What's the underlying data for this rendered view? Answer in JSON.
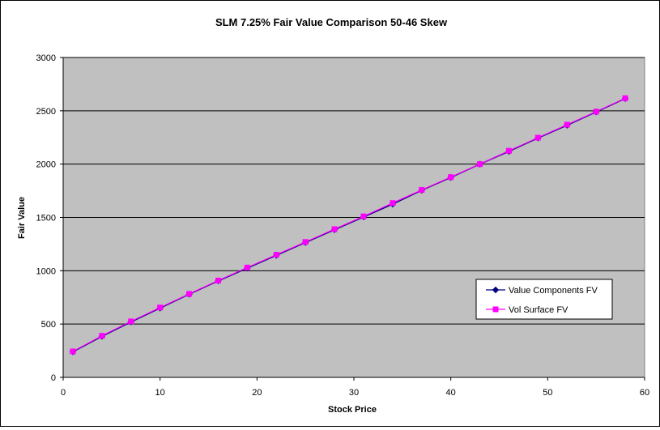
{
  "chart_data": {
    "type": "line",
    "title": "SLM 7.25% Fair Value Comparison 50-46 Skew",
    "xlabel": "Stock Price",
    "ylabel": "Fair Value",
    "xlim": [
      0,
      60
    ],
    "ylim": [
      0,
      3000
    ],
    "x_ticks": [
      "0",
      "10",
      "20",
      "30",
      "40",
      "50",
      "60"
    ],
    "y_ticks": [
      "0",
      "500",
      "1000",
      "1500",
      "2000",
      "2500",
      "3000"
    ],
    "grid": "horizontal",
    "legend_position": "bottom-right",
    "plot_background": "#c0c0c0",
    "series": [
      {
        "name": "Value Components FV",
        "color": "#000080",
        "marker": "diamond",
        "x": [
          1,
          4,
          7,
          10,
          13,
          16,
          19,
          22,
          25,
          28,
          31,
          34,
          37,
          40,
          43,
          46,
          49,
          52,
          55,
          58
        ],
        "y": [
          240,
          385,
          520,
          650,
          780,
          905,
          1025,
          1145,
          1265,
          1385,
          1505,
          1625,
          1755,
          1875,
          2000,
          2120,
          2245,
          2365,
          2490,
          2615
        ]
      },
      {
        "name": "Vol Surface FV",
        "color": "#ff00ff",
        "marker": "square",
        "x": [
          1,
          4,
          7,
          10,
          13,
          16,
          19,
          22,
          25,
          28,
          31,
          34,
          37,
          40,
          43,
          46,
          49,
          52,
          55,
          58
        ],
        "y": [
          243,
          390,
          525,
          655,
          783,
          908,
          1030,
          1150,
          1270,
          1390,
          1510,
          1635,
          1758,
          1878,
          2000,
          2125,
          2248,
          2370,
          2492,
          2618
        ]
      }
    ]
  }
}
